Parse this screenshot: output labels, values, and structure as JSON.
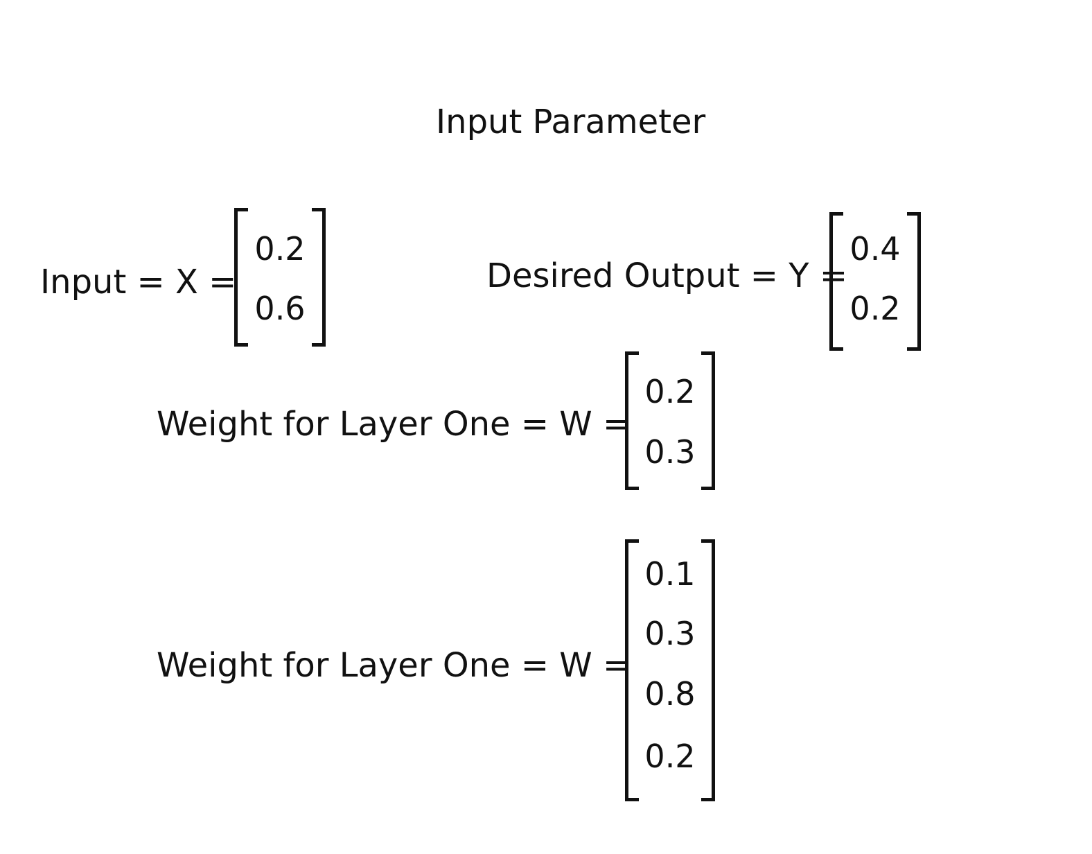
{
  "title": "Input Parameter",
  "input": {
    "label": "Input = X =",
    "values": [
      "0.2",
      "0.6"
    ]
  },
  "desired_output": {
    "label": "Desired Output = Y =",
    "values": [
      "0.4",
      "0.2"
    ]
  },
  "weight_layer_a": {
    "label": "Weight for Layer One = W =",
    "values": [
      "0.2",
      "0.3"
    ]
  },
  "weight_layer_b": {
    "label": "Weight for Layer One = W =",
    "values": [
      "0.1",
      "0.3",
      "0.8",
      "0.2"
    ]
  }
}
